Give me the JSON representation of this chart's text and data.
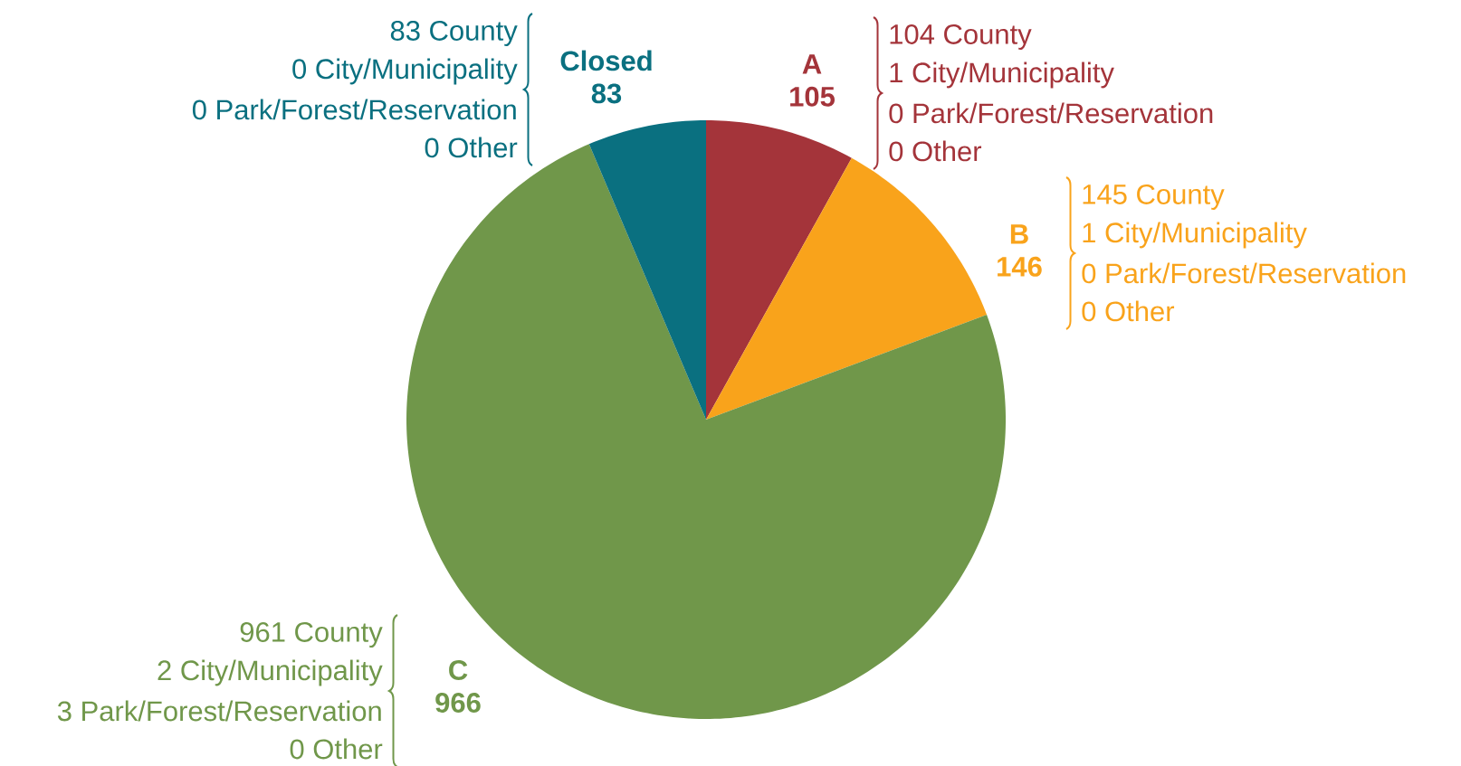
{
  "chart_data": {
    "type": "pie",
    "categories": [
      "A",
      "B",
      "C",
      "Closed"
    ],
    "values": [
      105,
      146,
      966,
      83
    ],
    "colors": [
      "#a4343a",
      "#f9a31b",
      "#70974a",
      "#0a7080"
    ],
    "data_labels": true,
    "legend": false,
    "annotations": [
      "104 County",
      "1 City/Municipality",
      "0 Park/Forest/Reservation",
      "0 Other",
      "145 County",
      "1 City/Municipality",
      "0 Park/Forest/Reservation",
      "0 Other",
      "961 County",
      "2 City/Municipality",
      "3 Park/Forest/Reservation",
      "0 Other",
      "83 County",
      "0 City/Municipality",
      "0 Park/Forest/Reservation",
      "0 Other"
    ]
  }
}
